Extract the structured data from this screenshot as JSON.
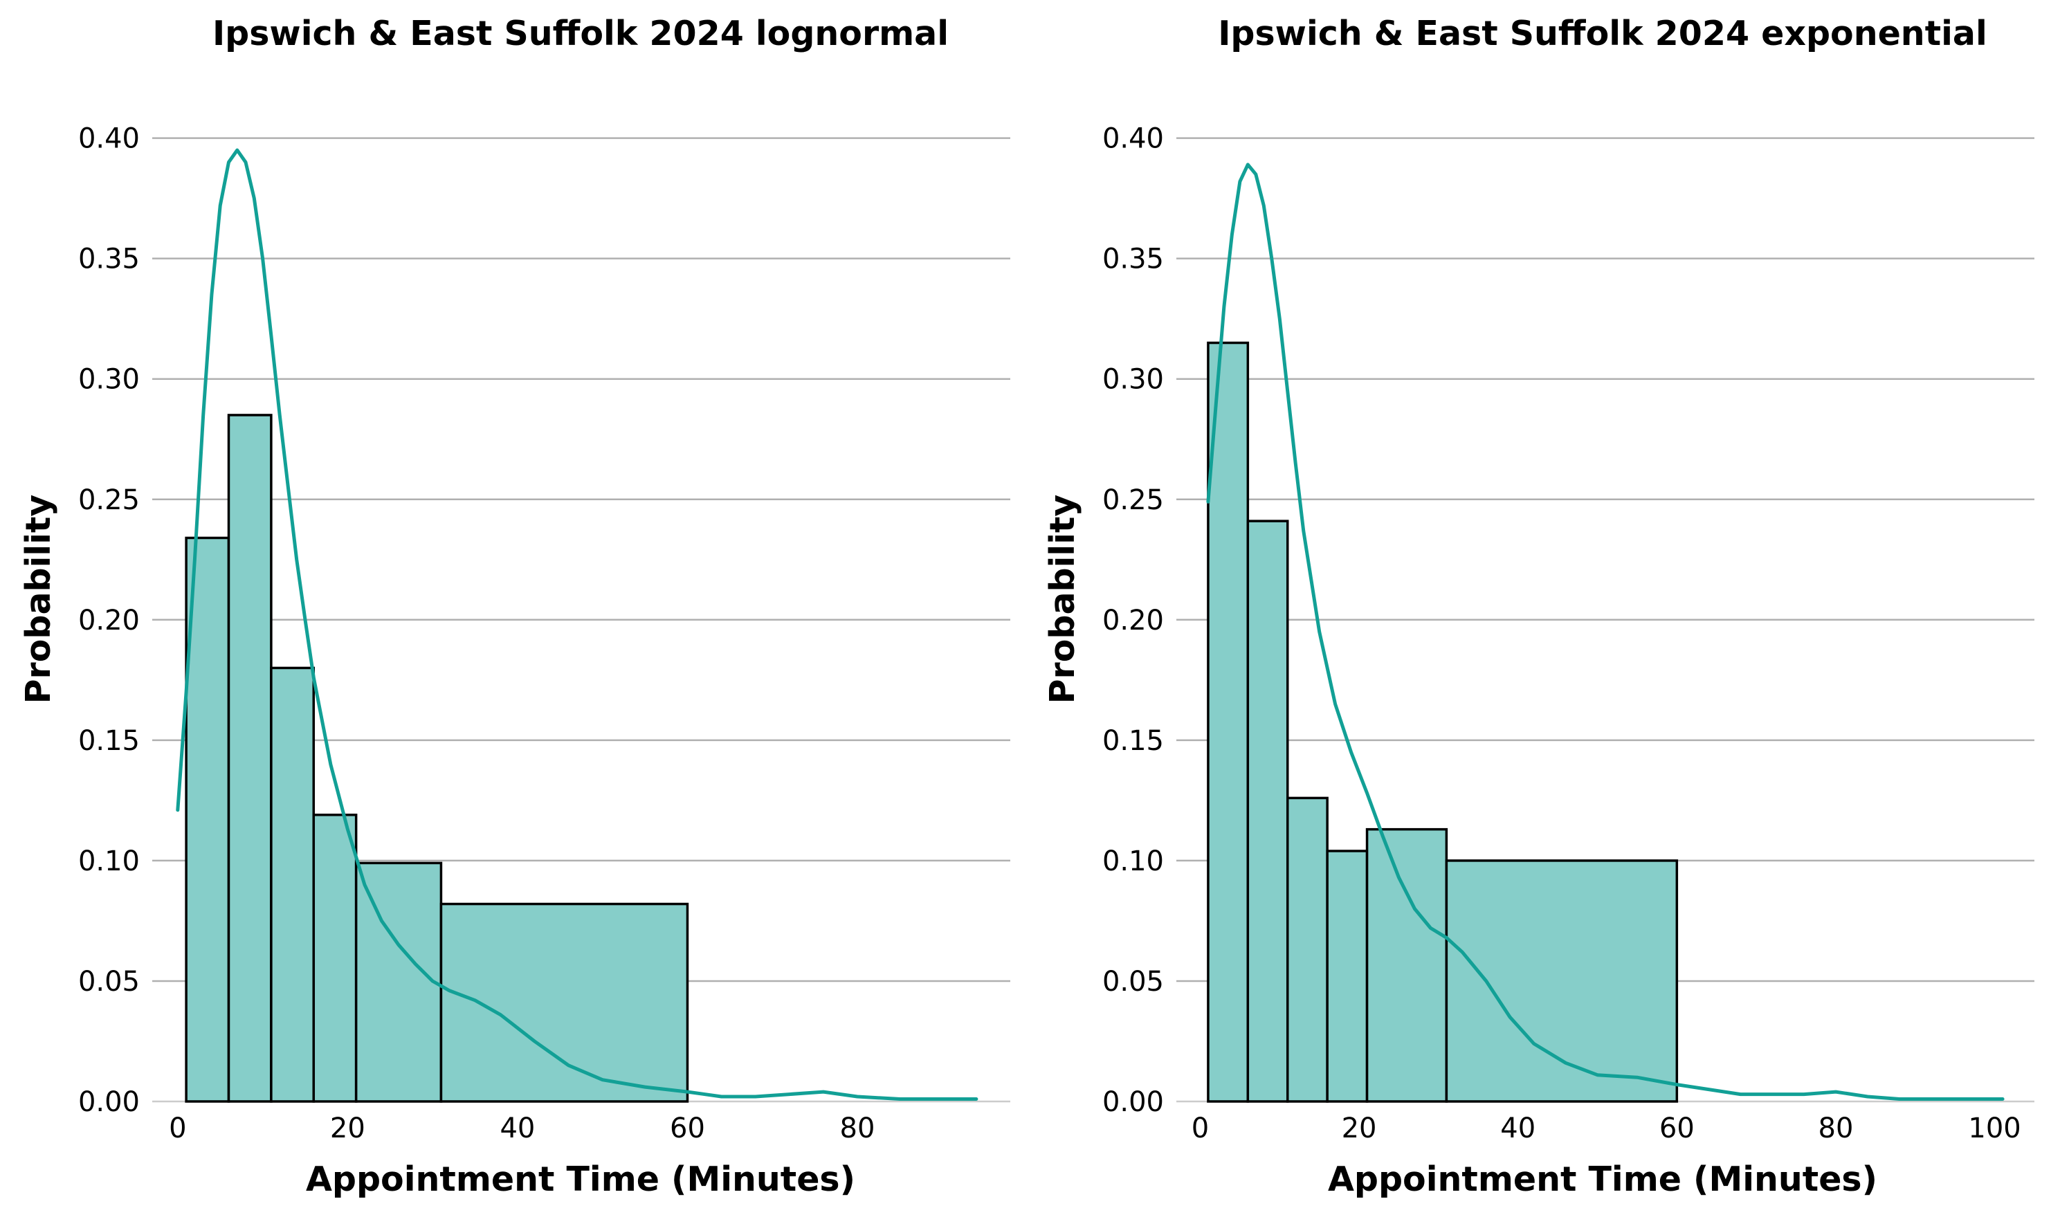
{
  "chart_data": [
    {
      "type": "bar",
      "title": "Ipswich & East Suffolk 2024 lognormal",
      "xlabel": "Appointment Time (Minutes)",
      "ylabel": "Probability",
      "xlim": [
        -3,
        98
      ],
      "ylim": [
        0,
        0.42
      ],
      "xticks": [
        0,
        20,
        40,
        60,
        80
      ],
      "xtick_labels": [
        "0",
        "20",
        "40",
        "60",
        "80"
      ],
      "yticks": [
        0,
        0.05,
        0.1,
        0.15,
        0.2,
        0.25,
        0.3,
        0.35,
        0.4
      ],
      "ytick_labels": [
        "0.00",
        "0.05",
        "0.10",
        "0.15",
        "0.20",
        "0.25",
        "0.30",
        "0.35",
        "0.40"
      ],
      "grid": "horizontal",
      "bins": [
        {
          "x0": 1,
          "x1": 6,
          "value": 0.234
        },
        {
          "x0": 6,
          "x1": 11,
          "value": 0.285
        },
        {
          "x0": 11,
          "x1": 16,
          "value": 0.18
        },
        {
          "x0": 16,
          "x1": 21,
          "value": 0.119
        },
        {
          "x0": 21,
          "x1": 31,
          "value": 0.099
        },
        {
          "x0": 31,
          "x1": 60,
          "value": 0.082
        }
      ],
      "kde": {
        "x": [
          0,
          1,
          2,
          3,
          4,
          5,
          6,
          7,
          8,
          9,
          10,
          11,
          12,
          13,
          14,
          15,
          16,
          18,
          20,
          22,
          24,
          26,
          28,
          30,
          32,
          35,
          38,
          42,
          46,
          50,
          55,
          60,
          64,
          68,
          72,
          76,
          80,
          85,
          90,
          94
        ],
        "y": [
          0.121,
          0.17,
          0.225,
          0.285,
          0.335,
          0.372,
          0.39,
          0.395,
          0.39,
          0.375,
          0.35,
          0.318,
          0.285,
          0.255,
          0.225,
          0.2,
          0.176,
          0.14,
          0.113,
          0.09,
          0.075,
          0.065,
          0.057,
          0.05,
          0.046,
          0.042,
          0.036,
          0.025,
          0.015,
          0.009,
          0.006,
          0.004,
          0.002,
          0.002,
          0.003,
          0.004,
          0.002,
          0.001,
          0.001,
          0.001
        ]
      }
    },
    {
      "type": "bar",
      "title": "Ipswich & East Suffolk 2024 exponential",
      "xlabel": "Appointment Time (Minutes)",
      "ylabel": "Probability",
      "xlim": [
        -3,
        105
      ],
      "ylim": [
        0,
        0.42
      ],
      "xticks": [
        0,
        20,
        40,
        60,
        80,
        100
      ],
      "xtick_labels": [
        "0",
        "20",
        "40",
        "60",
        "80",
        "100"
      ],
      "yticks": [
        0,
        0.05,
        0.1,
        0.15,
        0.2,
        0.25,
        0.3,
        0.35,
        0.4
      ],
      "ytick_labels": [
        "0.00",
        "0.05",
        "0.10",
        "0.15",
        "0.20",
        "0.25",
        "0.30",
        "0.35",
        "0.40"
      ],
      "grid": "horizontal",
      "bins": [
        {
          "x0": 1,
          "x1": 6,
          "value": 0.315
        },
        {
          "x0": 6,
          "x1": 11,
          "value": 0.241
        },
        {
          "x0": 11,
          "x1": 16,
          "value": 0.126
        },
        {
          "x0": 16,
          "x1": 21,
          "value": 0.104
        },
        {
          "x0": 21,
          "x1": 31,
          "value": 0.113
        },
        {
          "x0": 31,
          "x1": 60,
          "value": 0.1
        }
      ],
      "kde": {
        "x": [
          1,
          2,
          3,
          4,
          5,
          6,
          7,
          8,
          9,
          10,
          11,
          12,
          13,
          15,
          17,
          19,
          21,
          23,
          25,
          27,
          29,
          31,
          33,
          36,
          39,
          42,
          46,
          50,
          55,
          60,
          64,
          68,
          72,
          76,
          80,
          84,
          88,
          92,
          96,
          101
        ],
        "y": [
          0.249,
          0.29,
          0.33,
          0.36,
          0.382,
          0.389,
          0.385,
          0.372,
          0.35,
          0.325,
          0.295,
          0.265,
          0.237,
          0.195,
          0.165,
          0.145,
          0.128,
          0.11,
          0.093,
          0.08,
          0.072,
          0.068,
          0.062,
          0.05,
          0.035,
          0.024,
          0.016,
          0.011,
          0.01,
          0.007,
          0.005,
          0.003,
          0.003,
          0.003,
          0.004,
          0.002,
          0.001,
          0.001,
          0.001,
          0.001
        ]
      }
    }
  ]
}
